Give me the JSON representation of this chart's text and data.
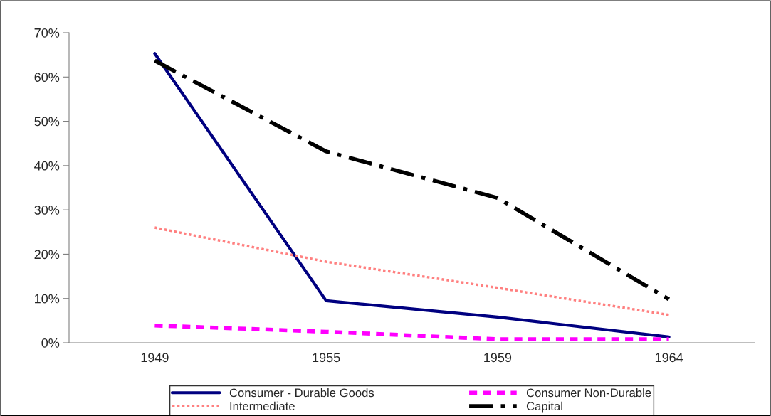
{
  "chart_data": {
    "type": "line",
    "categories": [
      "1949",
      "1955",
      "1959",
      "1964"
    ],
    "series": [
      {
        "name": "Consumer - Durable Goods",
        "color": "#000080",
        "line_style": "solid",
        "values": [
          0.653,
          0.095,
          0.058,
          0.013
        ]
      },
      {
        "name": "Consumer Non-Durable",
        "color": "#ff00ff",
        "line_style": "dashed",
        "values": [
          0.039,
          0.025,
          0.008,
          0.008
        ]
      },
      {
        "name": "Intermediate",
        "color": "#ff8080",
        "line_style": "dotted",
        "values": [
          0.26,
          0.183,
          0.124,
          0.063
        ]
      },
      {
        "name": "Capital",
        "color": "#000000",
        "line_style": "dashdot",
        "values": [
          0.637,
          0.432,
          0.327,
          0.098
        ]
      }
    ],
    "ylim": [
      0,
      0.7
    ],
    "yticks": [
      {
        "value": 0,
        "label": "0%"
      },
      {
        "value": 0.1,
        "label": "10%"
      },
      {
        "value": 0.2,
        "label": "20%"
      },
      {
        "value": 0.3,
        "label": "30%"
      },
      {
        "value": 0.4,
        "label": "40%"
      },
      {
        "value": 0.5,
        "label": "50%"
      },
      {
        "value": 0.6,
        "label": "60%"
      },
      {
        "value": 0.7,
        "label": "70%"
      }
    ],
    "legend": "bottom",
    "marker": "none"
  }
}
